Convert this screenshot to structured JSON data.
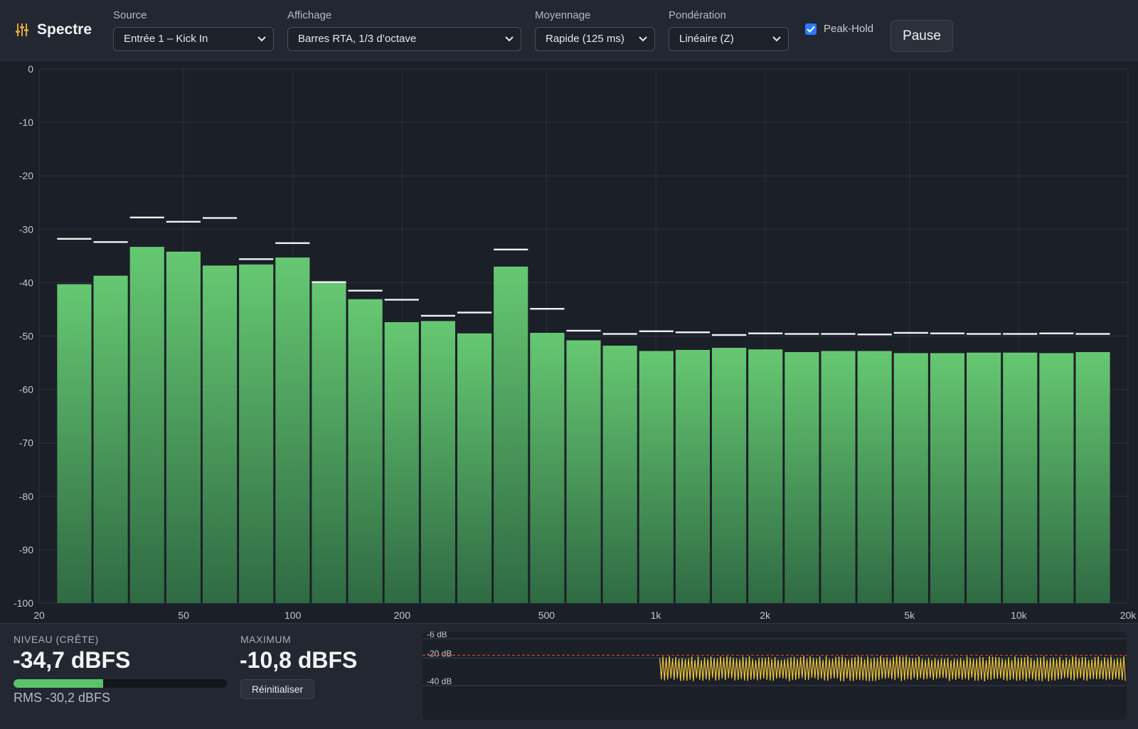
{
  "app": {
    "title": "Spectre",
    "icon": "equalizer-sliders-icon"
  },
  "toolbar": {
    "source": {
      "label": "Source",
      "value": "Entrée 1 – Kick In"
    },
    "display": {
      "label": "Affichage",
      "value": "Barres RTA, 1/3 d’octave"
    },
    "averaging": {
      "label": "Moyennage",
      "value": "Rapide (125 ms)"
    },
    "weighting": {
      "label": "Pondération",
      "value": "Linéaire (Z)"
    },
    "peak_hold": {
      "label": "Peak-Hold",
      "checked": true
    },
    "pause_label": "Pause"
  },
  "chart_data": {
    "type": "bar",
    "x_scale": "log",
    "xlim": [
      20,
      20000
    ],
    "ylim": [
      -100,
      0
    ],
    "ylabel": "",
    "xlabel": "",
    "grid": true,
    "y_ticks": [
      0,
      -10,
      -20,
      -30,
      -40,
      -50,
      -60,
      -70,
      -80,
      -90,
      -100
    ],
    "x_ticks": [
      20,
      50,
      100,
      200,
      500,
      1000,
      2000,
      5000,
      10000,
      20000
    ],
    "x_tick_labels": [
      "20",
      "50",
      "100",
      "200",
      "500",
      "1k",
      "2k",
      "5k",
      "10k",
      "20k"
    ],
    "bands_hz": [
      25,
      31.5,
      40,
      50,
      63,
      80,
      100,
      125,
      160,
      200,
      250,
      315,
      400,
      500,
      630,
      800,
      1000,
      1250,
      1600,
      2000,
      2500,
      3150,
      4000,
      5000,
      6300,
      8000,
      10000,
      12500,
      16000
    ],
    "series": [
      {
        "role": "level",
        "color": "#5cc26b",
        "values": [
          -40.3,
          -38.7,
          -33.3,
          -34.2,
          -36.8,
          -36.6,
          -35.3,
          -40.0,
          -43.1,
          -47.4,
          -47.2,
          -49.5,
          -37.0,
          -49.4,
          -50.8,
          -51.8,
          -52.8,
          -52.6,
          -52.2,
          -52.5,
          -53.0,
          -52.8,
          -52.8,
          -53.2,
          -53.2,
          -53.1,
          -53.1,
          -53.2,
          -53.0
        ]
      },
      {
        "role": "peak-hold",
        "color": "#f2f2f2",
        "values": [
          -31.8,
          -32.4,
          -27.8,
          -28.6,
          -27.9,
          -35.6,
          -32.6,
          -39.9,
          -41.5,
          -43.2,
          -46.2,
          -45.6,
          -33.8,
          -44.9,
          -49.0,
          -49.6,
          -49.1,
          -49.3,
          -49.8,
          -49.5,
          -49.6,
          -49.6,
          -49.7,
          -49.4,
          -49.5,
          -49.6,
          -49.6,
          -49.5,
          -49.6
        ]
      }
    ]
  },
  "meter": {
    "peak_label": "NIVEAU (CRÊTE)",
    "peak_value": "-34,7 dBFS",
    "peak_fraction": 0.42,
    "rms_text": "RMS -30,2 dBFS",
    "max_label": "MAXIMUM",
    "max_value": "-10,8 dBFS",
    "reset_label": "Réinitialiser"
  },
  "history": {
    "grid_labels": [
      "-6 dB",
      "-20 dB",
      "-40 dB"
    ],
    "grid_db": [
      -6,
      -20,
      -40
    ],
    "threshold_db": -18,
    "wave_color": "#f0c73c",
    "threshold_color": "#d9453f",
    "signal_start_fraction": 0.337,
    "signal_range_db": [
      -20,
      -40
    ]
  },
  "colors": {
    "background": "#1b1f27",
    "panel": "#222731",
    "bar_top": "#66c872",
    "bar_bottom": "#2f6a43",
    "accent": "#2a7bff"
  }
}
